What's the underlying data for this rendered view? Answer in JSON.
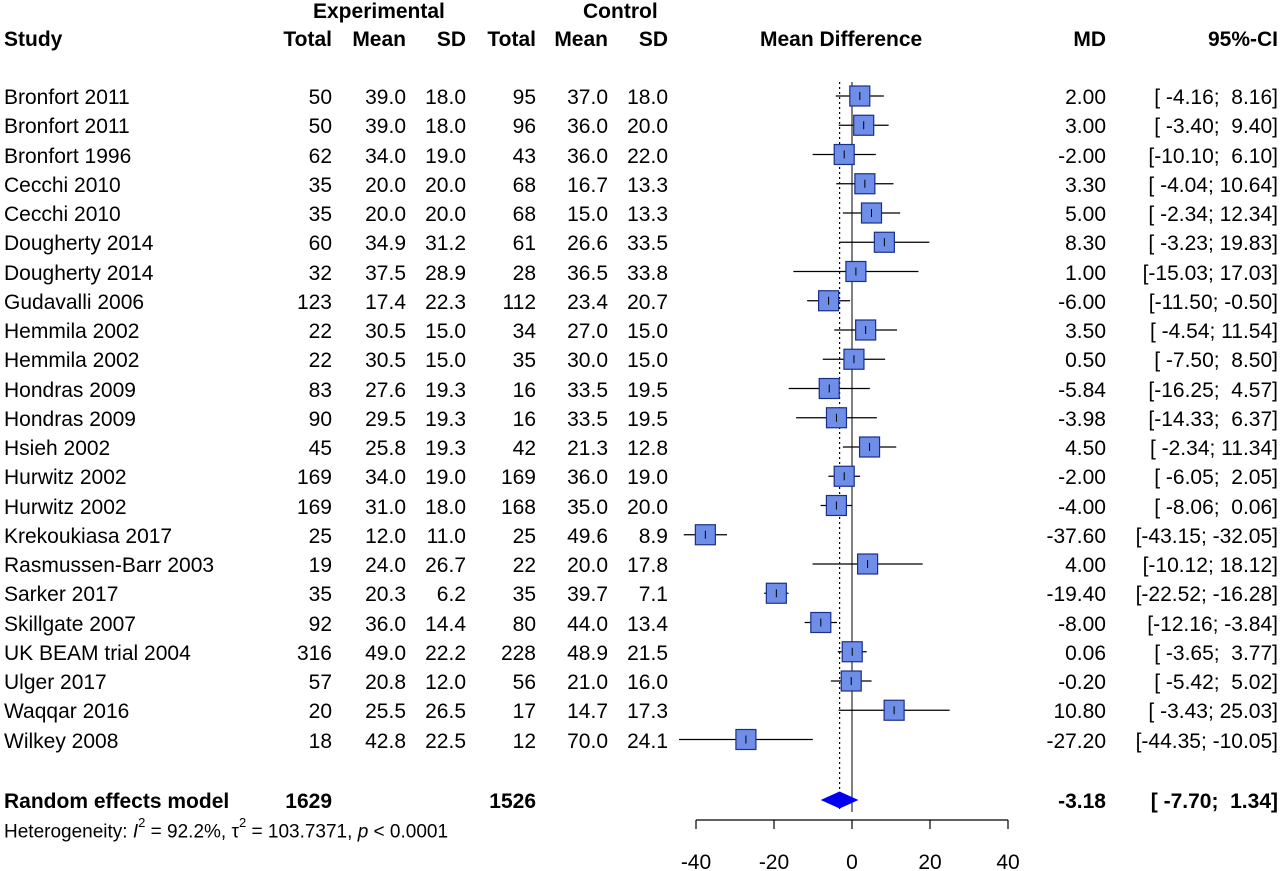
{
  "header": {
    "group_experimental": "Experimental",
    "group_control": "Control",
    "study": "Study",
    "total": "Total",
    "mean": "Mean",
    "sd": "SD",
    "mean_difference": "Mean Difference",
    "md": "MD",
    "ci": "95%-CI"
  },
  "studies": [
    {
      "name": "Bronfort 2011",
      "e_total": "50",
      "e_mean": "39.0",
      "e_sd": "18.0",
      "c_total": "95",
      "c_mean": "37.0",
      "c_sd": "18.0",
      "md": "2.00",
      "ci": "[ -4.16;  8.16]",
      "md_val": 2.0,
      "lo": -4.16,
      "hi": 8.16
    },
    {
      "name": "Bronfort 2011",
      "e_total": "50",
      "e_mean": "39.0",
      "e_sd": "18.0",
      "c_total": "96",
      "c_mean": "36.0",
      "c_sd": "20.0",
      "md": "3.00",
      "ci": "[ -3.40;  9.40]",
      "md_val": 3.0,
      "lo": -3.4,
      "hi": 9.4
    },
    {
      "name": "Bronfort 1996",
      "e_total": "62",
      "e_mean": "34.0",
      "e_sd": "19.0",
      "c_total": "43",
      "c_mean": "36.0",
      "c_sd": "22.0",
      "md": "-2.00",
      "ci": "[-10.10;  6.10]",
      "md_val": -2.0,
      "lo": -10.1,
      "hi": 6.1
    },
    {
      "name": "Cecchi 2010",
      "e_total": "35",
      "e_mean": "20.0",
      "e_sd": "20.0",
      "c_total": "68",
      "c_mean": "16.7",
      "c_sd": "13.3",
      "md": "3.30",
      "ci": "[ -4.04; 10.64]",
      "md_val": 3.3,
      "lo": -4.04,
      "hi": 10.64
    },
    {
      "name": "Cecchi 2010",
      "e_total": "35",
      "e_mean": "20.0",
      "e_sd": "20.0",
      "c_total": "68",
      "c_mean": "15.0",
      "c_sd": "13.3",
      "md": "5.00",
      "ci": "[ -2.34; 12.34]",
      "md_val": 5.0,
      "lo": -2.34,
      "hi": 12.34
    },
    {
      "name": "Dougherty 2014",
      "e_total": "60",
      "e_mean": "34.9",
      "e_sd": "31.2",
      "c_total": "61",
      "c_mean": "26.6",
      "c_sd": "33.5",
      "md": "8.30",
      "ci": "[ -3.23; 19.83]",
      "md_val": 8.3,
      "lo": -3.23,
      "hi": 19.83
    },
    {
      "name": "Dougherty 2014",
      "e_total": "32",
      "e_mean": "37.5",
      "e_sd": "28.9",
      "c_total": "28",
      "c_mean": "36.5",
      "c_sd": "33.8",
      "md": "1.00",
      "ci": "[-15.03; 17.03]",
      "md_val": 1.0,
      "lo": -15.03,
      "hi": 17.03
    },
    {
      "name": "Gudavalli 2006",
      "e_total": "123",
      "e_mean": "17.4",
      "e_sd": "22.3",
      "c_total": "112",
      "c_mean": "23.4",
      "c_sd": "20.7",
      "md": "-6.00",
      "ci": "[-11.50; -0.50]",
      "md_val": -6.0,
      "lo": -11.5,
      "hi": -0.5
    },
    {
      "name": "Hemmila 2002",
      "e_total": "22",
      "e_mean": "30.5",
      "e_sd": "15.0",
      "c_total": "34",
      "c_mean": "27.0",
      "c_sd": "15.0",
      "md": "3.50",
      "ci": "[ -4.54; 11.54]",
      "md_val": 3.5,
      "lo": -4.54,
      "hi": 11.54
    },
    {
      "name": "Hemmila 2002",
      "e_total": "22",
      "e_mean": "30.5",
      "e_sd": "15.0",
      "c_total": "35",
      "c_mean": "30.0",
      "c_sd": "15.0",
      "md": "0.50",
      "ci": "[ -7.50;  8.50]",
      "md_val": 0.5,
      "lo": -7.5,
      "hi": 8.5
    },
    {
      "name": "Hondras 2009",
      "e_total": "83",
      "e_mean": "27.6",
      "e_sd": "19.3",
      "c_total": "16",
      "c_mean": "33.5",
      "c_sd": "19.5",
      "md": "-5.84",
      "ci": "[-16.25;  4.57]",
      "md_val": -5.84,
      "lo": -16.25,
      "hi": 4.57
    },
    {
      "name": "Hondras 2009",
      "e_total": "90",
      "e_mean": "29.5",
      "e_sd": "19.3",
      "c_total": "16",
      "c_mean": "33.5",
      "c_sd": "19.5",
      "md": "-3.98",
      "ci": "[-14.33;  6.37]",
      "md_val": -3.98,
      "lo": -14.33,
      "hi": 6.37
    },
    {
      "name": "Hsieh 2002",
      "e_total": "45",
      "e_mean": "25.8",
      "e_sd": "19.3",
      "c_total": "42",
      "c_mean": "21.3",
      "c_sd": "12.8",
      "md": "4.50",
      "ci": "[ -2.34; 11.34]",
      "md_val": 4.5,
      "lo": -2.34,
      "hi": 11.34
    },
    {
      "name": "Hurwitz 2002",
      "e_total": "169",
      "e_mean": "34.0",
      "e_sd": "19.0",
      "c_total": "169",
      "c_mean": "36.0",
      "c_sd": "19.0",
      "md": "-2.00",
      "ci": "[ -6.05;  2.05]",
      "md_val": -2.0,
      "lo": -6.05,
      "hi": 2.05
    },
    {
      "name": "Hurwitz 2002",
      "e_total": "169",
      "e_mean": "31.0",
      "e_sd": "18.0",
      "c_total": "168",
      "c_mean": "35.0",
      "c_sd": "20.0",
      "md": "-4.00",
      "ci": "[ -8.06;  0.06]",
      "md_val": -4.0,
      "lo": -8.06,
      "hi": 0.06
    },
    {
      "name": "Krekoukiasa 2017",
      "e_total": "25",
      "e_mean": "12.0",
      "e_sd": "11.0",
      "c_total": "25",
      "c_mean": "49.6",
      "c_sd": "8.9",
      "md": "-37.60",
      "ci": "[-43.15; -32.05]",
      "md_val": -37.6,
      "lo": -43.15,
      "hi": -32.05
    },
    {
      "name": "Rasmussen-Barr 2003",
      "e_total": "19",
      "e_mean": "24.0",
      "e_sd": "26.7",
      "c_total": "22",
      "c_mean": "20.0",
      "c_sd": "17.8",
      "md": "4.00",
      "ci": "[-10.12; 18.12]",
      "md_val": 4.0,
      "lo": -10.12,
      "hi": 18.12
    },
    {
      "name": "Sarker 2017",
      "e_total": "35",
      "e_mean": "20.3",
      "e_sd": "6.2",
      "c_total": "35",
      "c_mean": "39.7",
      "c_sd": "7.1",
      "md": "-19.40",
      "ci": "[-22.52; -16.28]",
      "md_val": -19.4,
      "lo": -22.52,
      "hi": -16.28
    },
    {
      "name": "Skillgate 2007",
      "e_total": "92",
      "e_mean": "36.0",
      "e_sd": "14.4",
      "c_total": "80",
      "c_mean": "44.0",
      "c_sd": "13.4",
      "md": "-8.00",
      "ci": "[-12.16; -3.84]",
      "md_val": -8.0,
      "lo": -12.16,
      "hi": -3.84
    },
    {
      "name": "UK BEAM trial 2004",
      "e_total": "316",
      "e_mean": "49.0",
      "e_sd": "22.2",
      "c_total": "228",
      "c_mean": "48.9",
      "c_sd": "21.5",
      "md": "0.06",
      "ci": "[ -3.65;  3.77]",
      "md_val": 0.06,
      "lo": -3.65,
      "hi": 3.77
    },
    {
      "name": "Ulger 2017",
      "e_total": "57",
      "e_mean": "20.8",
      "e_sd": "12.0",
      "c_total": "56",
      "c_mean": "21.0",
      "c_sd": "16.0",
      "md": "-0.20",
      "ci": "[ -5.42;  5.02]",
      "md_val": -0.2,
      "lo": -5.42,
      "hi": 5.02
    },
    {
      "name": "Waqqar 2016",
      "e_total": "20",
      "e_mean": "25.5",
      "e_sd": "26.5",
      "c_total": "17",
      "c_mean": "14.7",
      "c_sd": "17.3",
      "md": "10.80",
      "ci": "[ -3.43; 25.03]",
      "md_val": 10.8,
      "lo": -3.43,
      "hi": 25.03
    },
    {
      "name": "Wilkey 2008",
      "e_total": "18",
      "e_mean": "42.8",
      "e_sd": "22.5",
      "c_total": "12",
      "c_mean": "70.0",
      "c_sd": "24.1",
      "md": "-27.20",
      "ci": "[-44.35; -10.05]",
      "md_val": -27.2,
      "lo": -44.35,
      "hi": -10.05
    }
  ],
  "summary": {
    "label": "Random effects model",
    "e_total": "1629",
    "c_total": "1526",
    "md": "-3.18",
    "ci": "[ -7.70;  1.34]",
    "md_val": -3.18,
    "lo": -7.7,
    "hi": 1.34
  },
  "heterogeneity": {
    "prefix": "Heterogeneity: ",
    "i2_sym": "I",
    "i2_sup": "2",
    "i2_text": " = 92.2%, ",
    "tau_sym": "τ",
    "tau_sup": "2",
    "tau_text": " = 103.7371, ",
    "p_sym": "p",
    "p_text": " < 0.0001"
  },
  "chart_data": {
    "type": "forest",
    "xlabel": "Mean Difference",
    "xlim": [
      -40,
      40
    ],
    "xticks": [
      -40,
      -20,
      0,
      20,
      40
    ],
    "tick_labels": [
      "-40",
      "-20",
      "0",
      "20",
      "40"
    ],
    "reference_line": 0,
    "pooled_line": -3.18,
    "colors": {
      "box": "#6e8ee8",
      "diamond": "#0000ee"
    }
  }
}
